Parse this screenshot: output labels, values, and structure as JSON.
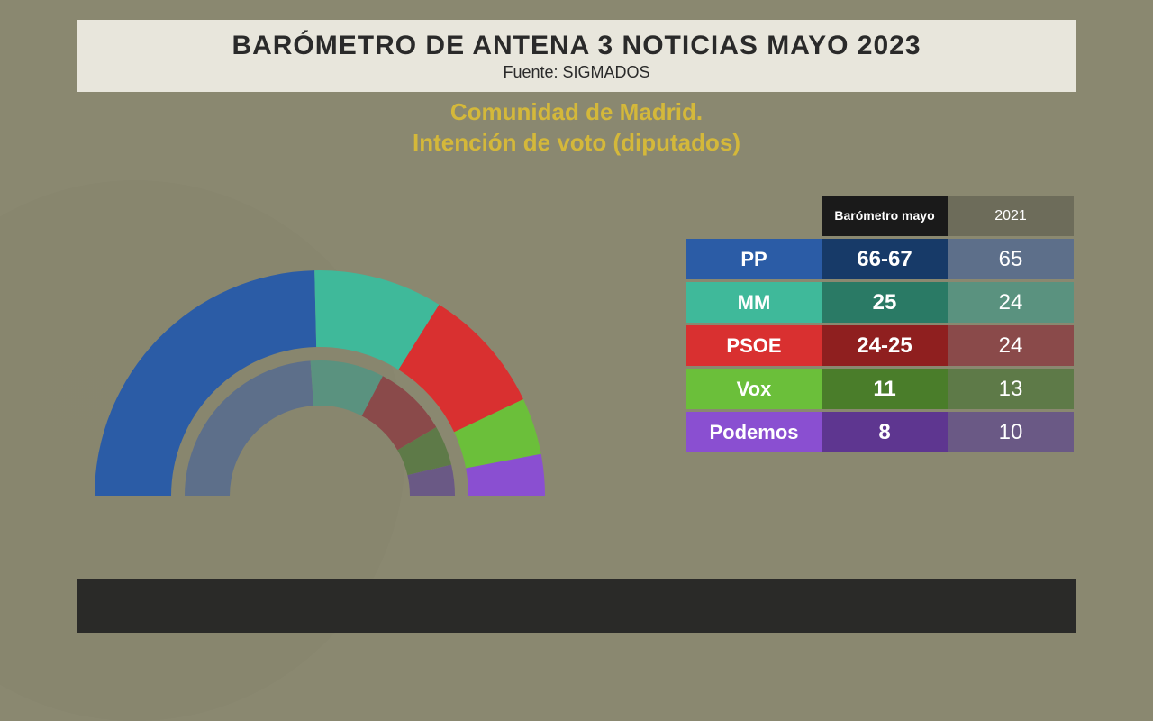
{
  "background_color": "#8a8870",
  "header": {
    "title": "BARÓMETRO DE ANTENA 3 NOTICIAS MAYO 2023",
    "source_label": "Fuente: SIGMADOS",
    "band_bg": "#e8e6dc",
    "title_color": "#2a2a2a",
    "title_fontsize": 30
  },
  "subtitle": {
    "line1": "Comunidad de Madrid.",
    "line2": "Intención de voto (diputados)",
    "color": "#d4b83a",
    "fontsize": 26
  },
  "chart": {
    "type": "half-donut-double-ring",
    "outer_total": 135,
    "inner_total": 136,
    "outer_series": [
      {
        "party": "PP",
        "value": 66.5,
        "color": "#2b5ca6"
      },
      {
        "party": "MM",
        "value": 25,
        "color": "#3fb99a"
      },
      {
        "party": "PSOE",
        "value": 24.5,
        "color": "#d93030"
      },
      {
        "party": "Vox",
        "value": 11,
        "color": "#6bbf3a"
      },
      {
        "party": "Podemos",
        "value": 8,
        "color": "#8a4fd1"
      }
    ],
    "inner_series": [
      {
        "party": "PP",
        "value": 65,
        "color": "#5d6f8a"
      },
      {
        "party": "MM",
        "value": 24,
        "color": "#5a927f"
      },
      {
        "party": "PSOE",
        "value": 24,
        "color": "#8a4a4a"
      },
      {
        "party": "Vox",
        "value": 13,
        "color": "#5e7a48"
      },
      {
        "party": "Podemos",
        "value": 10,
        "color": "#6a5985"
      }
    ],
    "outer_ring": {
      "r_outer": 250,
      "r_inner": 165
    },
    "inner_ring": {
      "r_outer": 150,
      "r_inner": 100
    }
  },
  "table": {
    "header_col1": "Barómetro mayo",
    "header_col2": "2021",
    "header_col1_bg": "#1a1a1a",
    "header_col2_bg": "#6d6c5a",
    "rows": [
      {
        "name": "PP",
        "val1": "66-67",
        "val2": "65",
        "name_bg": "#2b5ca6",
        "val1_bg": "#173a68",
        "val2_bg": "#5d6f8a"
      },
      {
        "name": "MM",
        "val1": "25",
        "val2": "24",
        "name_bg": "#3fb99a",
        "val1_bg": "#2a7a65",
        "val2_bg": "#5a927f"
      },
      {
        "name": "PSOE",
        "val1": "24-25",
        "val2": "24",
        "name_bg": "#d93030",
        "val1_bg": "#8f1f1f",
        "val2_bg": "#8a4a4a"
      },
      {
        "name": "Vox",
        "val1": "11",
        "val2": "13",
        "name_bg": "#6bbf3a",
        "val1_bg": "#4a7d2a",
        "val2_bg": "#5e7a48"
      },
      {
        "name": "Podemos",
        "val1": "8",
        "val2": "10",
        "name_bg": "#8a4fd1",
        "val1_bg": "#5e3690",
        "val2_bg": "#6a5985"
      }
    ]
  },
  "footer_band_bg": "#2a2a28"
}
